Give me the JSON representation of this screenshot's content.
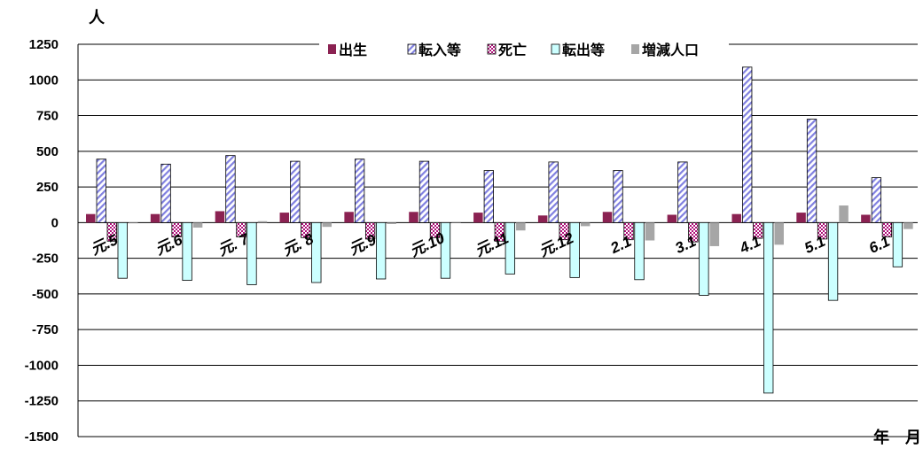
{
  "chart_data": {
    "type": "bar",
    "title": "",
    "y_unit_label": "人",
    "x_unit_label": "年　月",
    "ylim": [
      -1500,
      1250
    ],
    "yticks": [
      1250,
      1000,
      750,
      500,
      250,
      0,
      -250,
      -500,
      -750,
      -1000,
      -1250,
      -1500
    ],
    "grid": true,
    "legend_position": "top",
    "categories": [
      "元.5",
      "元.6",
      "元. 7",
      "元. 8",
      "元.9",
      "元.10",
      "元.11",
      "元.12",
      "2.1",
      "3.1",
      "4.1",
      "5.1",
      "6.1"
    ],
    "series": [
      {
        "name": "出生",
        "color": "#8b2252",
        "pattern": "solid",
        "values": [
          60,
          60,
          80,
          70,
          75,
          75,
          70,
          50,
          75,
          55,
          60,
          70,
          55
        ]
      },
      {
        "name": "転入等",
        "color": "#8080e0",
        "pattern": "diagonal",
        "values": [
          445,
          410,
          470,
          430,
          445,
          430,
          365,
          425,
          365,
          425,
          1090,
          725,
          315
        ]
      },
      {
        "name": "死亡",
        "color": "#b0107a",
        "pattern": "checker",
        "values": [
          -130,
          -100,
          -100,
          -105,
          -115,
          -105,
          -130,
          -120,
          -120,
          -135,
          -110,
          -115,
          -100
        ]
      },
      {
        "name": "転出等",
        "color": "#ccffff",
        "pattern": "solid-outline",
        "values": [
          -390,
          -405,
          -435,
          -420,
          -395,
          -390,
          -360,
          -385,
          -400,
          -510,
          -1195,
          -545,
          -310
        ]
      },
      {
        "name": "増減人口",
        "color": "#a6a6a6",
        "pattern": "solid",
        "values": [
          -5,
          -35,
          10,
          -30,
          -10,
          5,
          -55,
          -25,
          -125,
          -165,
          -155,
          120,
          -45
        ]
      }
    ]
  }
}
